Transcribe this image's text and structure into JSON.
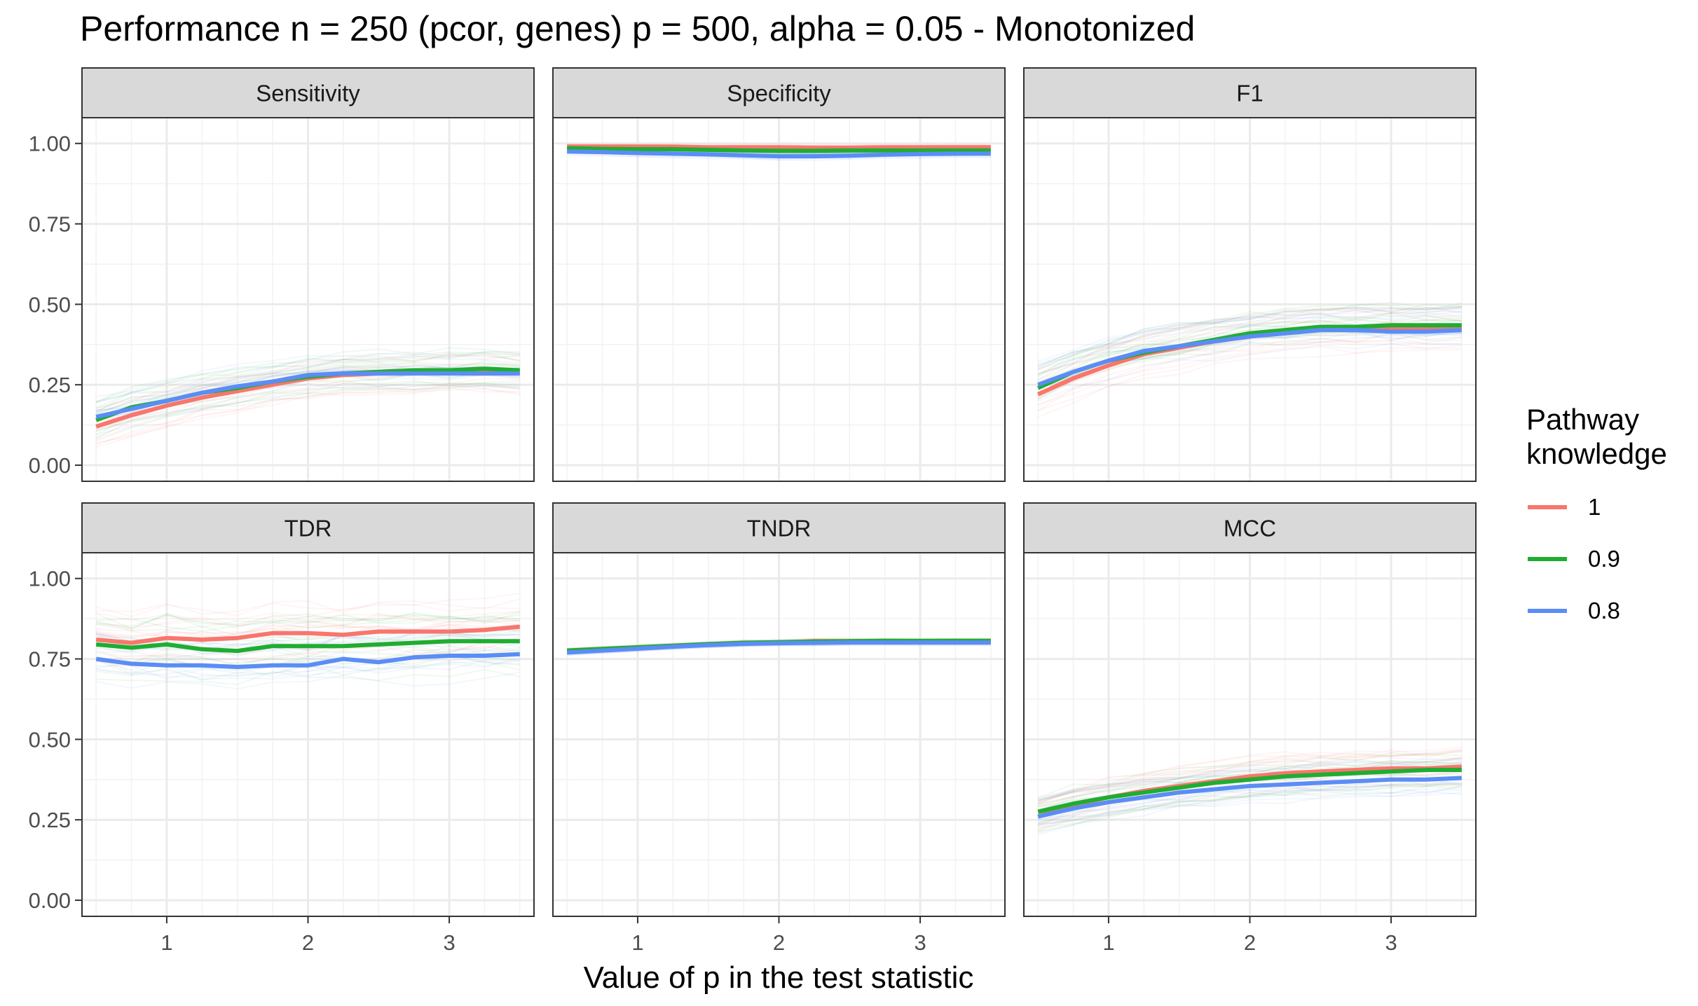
{
  "title": "Performance n = 250 (pcor, genes) p = 500, alpha = 0.05 - Monotonized",
  "colors": {
    "series_1": "#f8766d",
    "series_0_9": "#1fad31",
    "series_0_8": "#5b8df5",
    "strip_bg": "#d9d9d9",
    "grid": "#ebebeb",
    "panel_border": "#333333"
  },
  "chart_data": {
    "type": "line",
    "facet_layout": "2x3",
    "x_axis_title": "Value of p in the test statistic",
    "xlim": [
      0.4,
      3.6
    ],
    "ylim": [
      -0.05,
      1.08
    ],
    "x_ticks": [
      1,
      2,
      3
    ],
    "x_tick_labels": [
      "1",
      "2",
      "3"
    ],
    "y_ticks": [
      0,
      0.25,
      0.5,
      0.75,
      1.0
    ],
    "y_tick_labels": [
      "0.00",
      "0.25",
      "0.50",
      "0.75",
      "1.00"
    ],
    "grid": true,
    "x": [
      0.5,
      0.75,
      1.0,
      1.25,
      1.5,
      1.75,
      2.0,
      2.25,
      2.5,
      2.75,
      3.0,
      3.25,
      3.5
    ],
    "legend": {
      "title_line1": "Pathway",
      "title_line2": "knowledge",
      "position": "right",
      "entries": [
        "1",
        "0.9",
        "0.8"
      ]
    },
    "panels": [
      {
        "name": "Sensitivity",
        "series": [
          {
            "name": "1",
            "values": [
              0.12,
              0.155,
              0.185,
              0.21,
              0.23,
              0.25,
              0.27,
              0.28,
              0.285,
              0.285,
              0.29,
              0.29,
              0.285
            ]
          },
          {
            "name": "0.9",
            "values": [
              0.14,
              0.18,
              0.2,
              0.225,
              0.24,
              0.26,
              0.275,
              0.285,
              0.29,
              0.295,
              0.295,
              0.3,
              0.295
            ]
          },
          {
            "name": "0.8",
            "values": [
              0.15,
              0.175,
              0.2,
              0.225,
              0.245,
              0.26,
              0.28,
              0.285,
              0.285,
              0.285,
              0.285,
              0.285,
              0.285
            ]
          }
        ]
      },
      {
        "name": "Specificity",
        "series": [
          {
            "name": "1",
            "values": [
              0.99,
              0.99,
              0.99,
              0.99,
              0.988,
              0.988,
              0.988,
              0.987,
              0.987,
              0.988,
              0.988,
              0.988,
              0.988
            ]
          },
          {
            "name": "0.9",
            "values": [
              0.985,
              0.983,
              0.982,
              0.982,
              0.98,
              0.978,
              0.977,
              0.977,
              0.978,
              0.978,
              0.978,
              0.978,
              0.978
            ]
          },
          {
            "name": "0.8",
            "values": [
              0.975,
              0.973,
              0.97,
              0.968,
              0.966,
              0.963,
              0.96,
              0.96,
              0.962,
              0.965,
              0.967,
              0.968,
              0.968
            ]
          }
        ]
      },
      {
        "name": "F1",
        "series": [
          {
            "name": "1",
            "values": [
              0.22,
              0.27,
              0.31,
              0.345,
              0.365,
              0.385,
              0.4,
              0.41,
              0.42,
              0.42,
              0.425,
              0.425,
              0.425
            ]
          },
          {
            "name": "0.9",
            "values": [
              0.24,
              0.29,
              0.325,
              0.35,
              0.37,
              0.39,
              0.41,
              0.42,
              0.43,
              0.43,
              0.435,
              0.435,
              0.435
            ]
          },
          {
            "name": "0.8",
            "values": [
              0.25,
              0.29,
              0.325,
              0.355,
              0.37,
              0.385,
              0.4,
              0.41,
              0.42,
              0.42,
              0.415,
              0.415,
              0.42
            ]
          }
        ]
      },
      {
        "name": "TDR",
        "series": [
          {
            "name": "1",
            "values": [
              0.81,
              0.8,
              0.815,
              0.81,
              0.815,
              0.83,
              0.83,
              0.825,
              0.835,
              0.835,
              0.835,
              0.84,
              0.85
            ]
          },
          {
            "name": "0.9",
            "values": [
              0.795,
              0.785,
              0.795,
              0.78,
              0.775,
              0.79,
              0.79,
              0.79,
              0.795,
              0.8,
              0.805,
              0.805,
              0.805
            ]
          },
          {
            "name": "0.8",
            "values": [
              0.75,
              0.735,
              0.73,
              0.73,
              0.725,
              0.73,
              0.73,
              0.75,
              0.74,
              0.755,
              0.76,
              0.76,
              0.765
            ]
          }
        ]
      },
      {
        "name": "TNDR",
        "series": [
          {
            "name": "1",
            "values": [
              0.775,
              0.78,
              0.785,
              0.79,
              0.795,
              0.8,
              0.8,
              0.805,
              0.805,
              0.805,
              0.805,
              0.805,
              0.805
            ]
          },
          {
            "name": "0.9",
            "values": [
              0.776,
              0.781,
              0.786,
              0.791,
              0.796,
              0.8,
              0.802,
              0.804,
              0.805,
              0.806,
              0.806,
              0.806,
              0.806
            ]
          },
          {
            "name": "0.8",
            "values": [
              0.77,
              0.776,
              0.782,
              0.788,
              0.793,
              0.797,
              0.799,
              0.8,
              0.801,
              0.801,
              0.801,
              0.801,
              0.801
            ]
          }
        ]
      },
      {
        "name": "MCC",
        "series": [
          {
            "name": "1",
            "values": [
              0.26,
              0.295,
              0.32,
              0.34,
              0.355,
              0.37,
              0.385,
              0.395,
              0.4,
              0.405,
              0.41,
              0.41,
              0.415
            ]
          },
          {
            "name": "0.9",
            "values": [
              0.275,
              0.3,
              0.32,
              0.335,
              0.35,
              0.365,
              0.375,
              0.385,
              0.39,
              0.395,
              0.4,
              0.405,
              0.405
            ]
          },
          {
            "name": "0.8",
            "values": [
              0.26,
              0.285,
              0.305,
              0.32,
              0.335,
              0.345,
              0.355,
              0.36,
              0.365,
              0.37,
              0.375,
              0.375,
              0.38
            ]
          }
        ]
      }
    ]
  }
}
